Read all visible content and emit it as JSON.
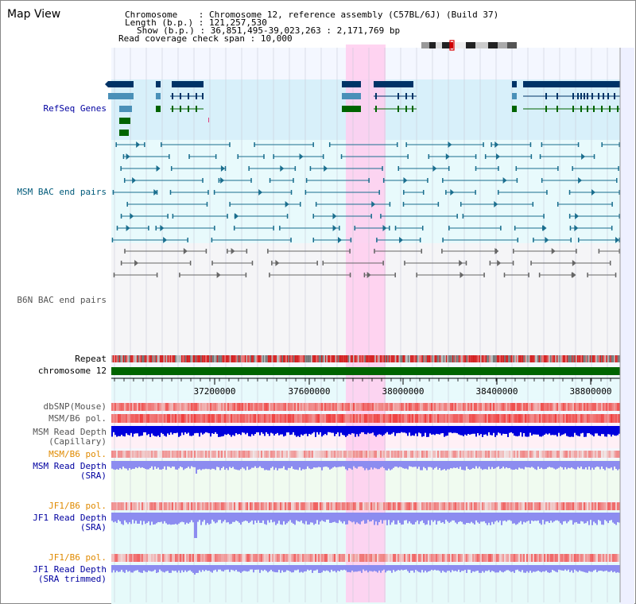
{
  "title": "Map View",
  "info": {
    "chromosome_label": "Chromosome",
    "chromosome_value": "Chromosome 12, reference assembly (C57BL/6J) (Build 37)",
    "length_label": "Length (b.p.)",
    "length_value": "121,257,530",
    "show_label": "Show (b.p.)",
    "show_value": "36,851,495-39,023,263 : 2,171,769 bp",
    "span_label": "Read coverage check span",
    "span_value": "10,000"
  },
  "tracks": {
    "refseq": "RefSeq Genes",
    "msm_bac": "MSM BAC end pairs",
    "b6n_bac": "B6N BAC end pairs",
    "repeat": "Repeat",
    "chromosome": "chromosome 12",
    "dbsnp": "dbSNP(Mouse)",
    "msm_pol": "MSM/B6 pol.",
    "msm_depth_cap_1": "MSM Read Depth",
    "msm_depth_cap_2": "(Capillary)",
    "msm_pol_sra": "MSM/B6 pol.",
    "msm_depth_sra_1": "MSM Read Depth",
    "msm_depth_sra_2": "(SRA)",
    "jf1_pol": "JF1/B6 pol.",
    "jf1_depth_1": "JF1 Read Depth",
    "jf1_depth_2": "(SRA)",
    "jf1_pol_trim": "JF1/B6 pol.",
    "jf1_depth_trim_1": "JF1 Read Depth",
    "jf1_depth_trim_2": "(SRA trimmed)"
  },
  "axis_ticks": [
    "37200000",
    "37600000",
    "38000000",
    "38400000",
    "38800000"
  ],
  "colors": {
    "refseq_dark": "#003366",
    "refseq_light": "#4a90b8",
    "refseq_green": "#006400",
    "msm_bac": "#1a6e8e",
    "b6n_bac": "#666666",
    "highlight": "#ffccee",
    "chrom_bar": "#006400",
    "depth_blue": "#0000dd",
    "depth_sra": "#8c8cf0",
    "pol_red": "#f04040"
  }
}
